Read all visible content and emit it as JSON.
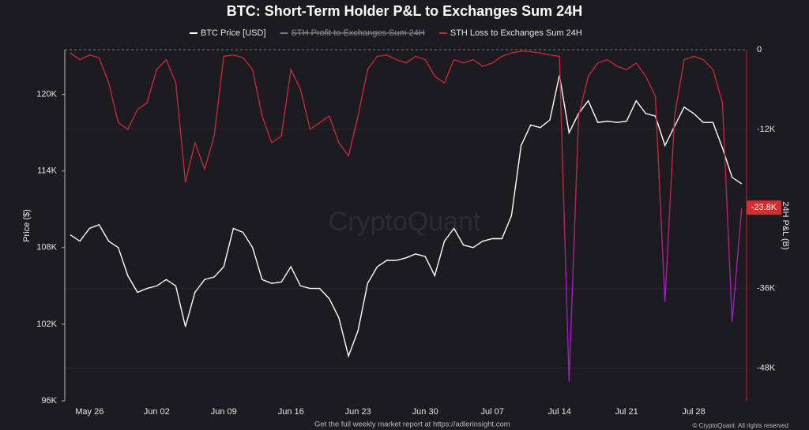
{
  "chart_data": {
    "type": "line",
    "title": "BTC: Short-Term Holder P&L to Exchanges Sum 24H",
    "y_label": "Price ($)",
    "y2_label": "24H P&L (B)",
    "watermark": "CryptoQuant",
    "footer": "Get the full weekly market report at https://adlerinsight.com",
    "credit": "© CryptoQuant. All rights reserved",
    "categories": [
      null,
      null,
      "May 26",
      null,
      null,
      null,
      null,
      null,
      null,
      "Jun 02",
      null,
      null,
      null,
      null,
      null,
      null,
      "Jun 09",
      null,
      null,
      null,
      null,
      null,
      null,
      "Jun 16",
      null,
      null,
      null,
      null,
      null,
      null,
      "Jun 23",
      null,
      null,
      null,
      null,
      null,
      null,
      "Jun 30",
      null,
      null,
      null,
      null,
      null,
      null,
      "Jul 07",
      null,
      null,
      null,
      null,
      null,
      null,
      "Jul 14",
      null,
      null,
      null,
      null,
      null,
      null,
      "Jul 21",
      null,
      null,
      null,
      null,
      null,
      null,
      "Jul 28",
      null,
      null,
      null,
      null,
      null
    ],
    "series": [
      {
        "name": "BTC Price [USD]",
        "color": "#ffffff",
        "values": [
          109000,
          108500,
          109500,
          109800,
          108500,
          108000,
          105800,
          104500,
          104800,
          105000,
          105500,
          105000,
          101800,
          104500,
          105500,
          105700,
          106500,
          109500,
          109200,
          108000,
          105500,
          105200,
          105300,
          106500,
          105000,
          104800,
          104800,
          104000,
          102500,
          99500,
          101500,
          105200,
          106500,
          107000,
          107000,
          107200,
          107500,
          107300,
          105800,
          108500,
          109500,
          108200,
          108000,
          108500,
          108700,
          108700,
          110500,
          116000,
          117600,
          117400,
          118000,
          121500,
          117000,
          118500,
          119500,
          117800,
          117900,
          117800,
          117900,
          119500,
          118500,
          118300,
          116000,
          117500,
          119000,
          118500,
          117800,
          117800,
          115800,
          113500,
          113000
        ]
      },
      {
        "name": "STH Profit to Exchanges Sum 24H",
        "color": "#9a9a9a",
        "hidden": true,
        "axis": "y2"
      },
      {
        "name": "STH Loss to Exchanges Sum 24H",
        "color": "#c0283c",
        "color_low": "#9b1fc4",
        "axis": "y2",
        "values": [
          -500,
          -1500,
          -800,
          -1200,
          -5000,
          -11000,
          -12000,
          -9000,
          -8000,
          -3000,
          -1500,
          -5000,
          -20000,
          -14000,
          -18000,
          -13000,
          -1000,
          -800,
          -1200,
          -3000,
          -10000,
          -14000,
          -13000,
          -3000,
          -6000,
          -12000,
          -11000,
          -10000,
          -14000,
          -16000,
          -10000,
          -3000,
          -1000,
          -800,
          -1500,
          -2000,
          -1000,
          -1500,
          -4000,
          -5000,
          -1500,
          -2000,
          -1500,
          -2500,
          -2000,
          -1000,
          -500,
          -200,
          -300,
          -500,
          -800,
          -1000,
          -50000,
          -10000,
          -4000,
          -2000,
          -1500,
          -2500,
          -3000,
          -2000,
          -4000,
          -7000,
          -38000,
          -10000,
          -1500,
          -1000,
          -1500,
          -3000,
          -8000,
          -41000,
          -23800
        ]
      }
    ],
    "ylim": [
      96000,
      123500
    ],
    "yticks": [
      {
        "value": 96000,
        "label": "96K"
      },
      {
        "value": 102000,
        "label": "102K"
      },
      {
        "value": 108000,
        "label": "108K"
      },
      {
        "value": 114000,
        "label": "114K"
      },
      {
        "value": 120000,
        "label": "120K"
      }
    ],
    "y2lim": [
      -52900,
      0
    ],
    "y2ticks": [
      {
        "value": -48000,
        "label": "-48K"
      },
      {
        "value": -36000,
        "label": "-36K"
      },
      {
        "value": -12000,
        "label": "-12K"
      },
      0
    ],
    "annotation": {
      "value": -23800,
      "label": "-23.8K"
    },
    "grid": true
  }
}
